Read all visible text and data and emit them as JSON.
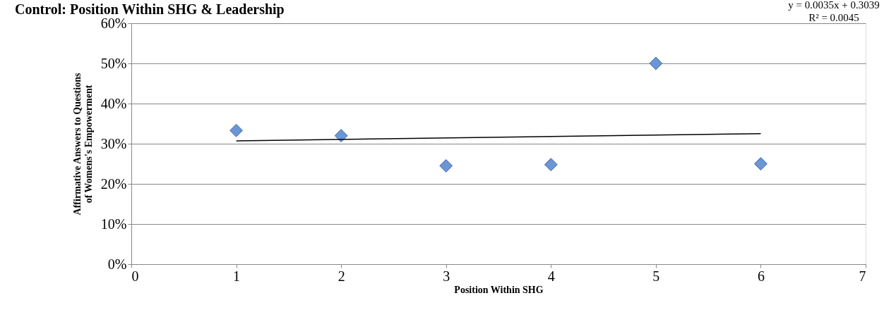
{
  "chart_data": {
    "type": "scatter",
    "title": "Control: Position Within SHG & Leadership",
    "xlabel": "Position Within SHG",
    "ylabel": "Affirmative Answers to Questions of Womens's Empowerment",
    "series": [
      {
        "color": "#6a96d6",
        "x": [
          1,
          2,
          3,
          4,
          5,
          6
        ],
        "values": [
          0.333,
          0.32,
          0.245,
          0.248,
          0.5,
          0.25
        ]
      },
      {
        "type": "line",
        "marker": "none",
        "color": "#000000",
        "x": [
          1,
          6
        ],
        "values": [
          0.307,
          0.325
        ]
      }
    ],
    "xlim": [
      0,
      7
    ],
    "xticks": [
      0,
      1,
      2,
      3,
      4,
      5,
      6,
      7
    ],
    "ylim": [
      0,
      0.6
    ],
    "yticks": [
      {
        "value": 0,
        "label": "0%"
      },
      {
        "value": 0.1,
        "label": "10%"
      },
      {
        "value": 0.2,
        "label": "20%"
      },
      {
        "value": 0.3,
        "label": "30%"
      },
      {
        "value": 0.4,
        "label": "40%"
      },
      {
        "value": 0.5,
        "label": "50%"
      },
      {
        "value": 0.6,
        "label": "60%"
      }
    ],
    "grid": "y",
    "marker": "diamond",
    "legend": false,
    "annotations": [
      "y = 0.0035x + 0.3039",
      "R² = 0.0045"
    ]
  }
}
